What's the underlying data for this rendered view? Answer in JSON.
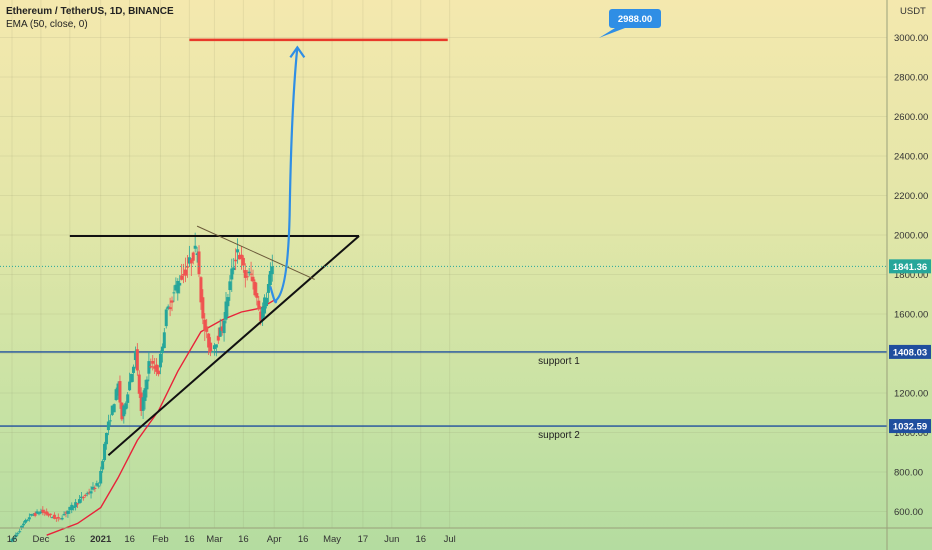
{
  "chart_data": {
    "type": "candlestick",
    "title": "Ethereum / TetherUS, 1D, BINANCE",
    "indicator": "EMA (50, close, 0)",
    "currency": "USDT",
    "y_ticks": [
      "600.00",
      "800.00",
      "1000.00",
      "1200.00",
      "1400.00",
      "1600.00",
      "1800.00",
      "2000.00",
      "2200.00",
      "2400.00",
      "2600.00",
      "2800.00",
      "3000.00"
    ],
    "x_ticks": [
      {
        "label": "16",
        "date": "2020-11-16"
      },
      {
        "label": "Dec",
        "date": "2020-12-01"
      },
      {
        "label": "16",
        "date": "2020-12-16"
      },
      {
        "label": "2021",
        "date": "2021-01-01",
        "bold": true
      },
      {
        "label": "16",
        "date": "2021-01-16"
      },
      {
        "label": "Feb",
        "date": "2021-02-01"
      },
      {
        "label": "16",
        "date": "2021-02-16"
      },
      {
        "label": "Mar",
        "date": "2021-03-01"
      },
      {
        "label": "16",
        "date": "2021-03-16"
      },
      {
        "label": "Apr",
        "date": "2021-04-01"
      },
      {
        "label": "16",
        "date": "2021-04-16"
      },
      {
        "label": "May",
        "date": "2021-05-01"
      },
      {
        "label": "17",
        "date": "2021-05-17"
      },
      {
        "label": "Jun",
        "date": "2021-06-01"
      },
      {
        "label": "16",
        "date": "2021-06-16"
      },
      {
        "label": "Jul",
        "date": "2021-07-01"
      }
    ],
    "price_key_points": [
      {
        "date": "2020-11-16",
        "price": 455
      },
      {
        "date": "2020-11-25",
        "price": 575
      },
      {
        "date": "2020-12-01",
        "price": 600
      },
      {
        "date": "2020-12-10",
        "price": 560
      },
      {
        "date": "2020-12-20",
        "price": 650
      },
      {
        "date": "2020-12-31",
        "price": 740
      },
      {
        "date": "2021-01-04",
        "price": 1000
      },
      {
        "date": "2021-01-10",
        "price": 1240
      },
      {
        "date": "2021-01-12",
        "price": 1070
      },
      {
        "date": "2021-01-19",
        "price": 1400
      },
      {
        "date": "2021-01-22",
        "price": 1100
      },
      {
        "date": "2021-01-26",
        "price": 1350
      },
      {
        "date": "2021-01-31",
        "price": 1310
      },
      {
        "date": "2021-02-04",
        "price": 1600
      },
      {
        "date": "2021-02-10",
        "price": 1760
      },
      {
        "date": "2021-02-14",
        "price": 1820
      },
      {
        "date": "2021-02-20",
        "price": 1940
      },
      {
        "date": "2021-02-23",
        "price": 1560
      },
      {
        "date": "2021-02-27",
        "price": 1410
      },
      {
        "date": "2021-03-05",
        "price": 1530
      },
      {
        "date": "2021-03-10",
        "price": 1810
      },
      {
        "date": "2021-03-13",
        "price": 1930
      },
      {
        "date": "2021-03-17",
        "price": 1790
      },
      {
        "date": "2021-03-20",
        "price": 1800
      },
      {
        "date": "2021-03-25",
        "price": 1590
      },
      {
        "date": "2021-03-28",
        "price": 1700
      },
      {
        "date": "2021-03-31",
        "price": 1841
      }
    ],
    "ema_points": [
      {
        "date": "2020-12-04",
        "price": 480
      },
      {
        "date": "2020-12-20",
        "price": 540
      },
      {
        "date": "2021-01-01",
        "price": 620
      },
      {
        "date": "2021-01-10",
        "price": 770
      },
      {
        "date": "2021-01-20",
        "price": 960
      },
      {
        "date": "2021-01-31",
        "price": 1110
      },
      {
        "date": "2021-02-10",
        "price": 1310
      },
      {
        "date": "2021-02-22",
        "price": 1510
      },
      {
        "date": "2021-03-05",
        "price": 1570
      },
      {
        "date": "2021-03-15",
        "price": 1610
      },
      {
        "date": "2021-03-25",
        "price": 1630
      },
      {
        "date": "2021-04-01",
        "price": 1670
      }
    ],
    "current_price": "1841.36",
    "target_price": "2988.00",
    "support_levels": [
      {
        "name": "support 1",
        "price": "1408.03"
      },
      {
        "name": "support 2",
        "price": "1032.59"
      }
    ],
    "resistance": {
      "price": 1995,
      "from": "2020-12-16",
      "to": "2021-05-15"
    },
    "rising_trendline": {
      "from": {
        "date": "2021-01-05",
        "price": 885
      },
      "to": {
        "date": "2021-05-15",
        "price": 1995
      }
    },
    "falling_trendline": {
      "from": {
        "date": "2021-02-20",
        "price": 2045
      },
      "to": {
        "date": "2021-04-22",
        "price": 1775
      }
    },
    "target_line": {
      "price": 2988,
      "from": "2021-02-16",
      "to": "2021-06-30"
    },
    "projection_path": [
      {
        "date": "2021-03-30",
        "price": 1740
      },
      {
        "date": "2021-04-02",
        "price": 1670
      },
      {
        "date": "2021-04-06",
        "price": 1720
      },
      {
        "date": "2021-04-09",
        "price": 2100
      },
      {
        "date": "2021-04-13",
        "price": 2950
      }
    ],
    "colors": {
      "up": "#26a69a",
      "down": "#ef5350",
      "ema": "#e8233a",
      "support": "#1f4e9e",
      "target": "#e83a2a",
      "projection": "#2f8ee5",
      "trendline": "#111111"
    }
  }
}
